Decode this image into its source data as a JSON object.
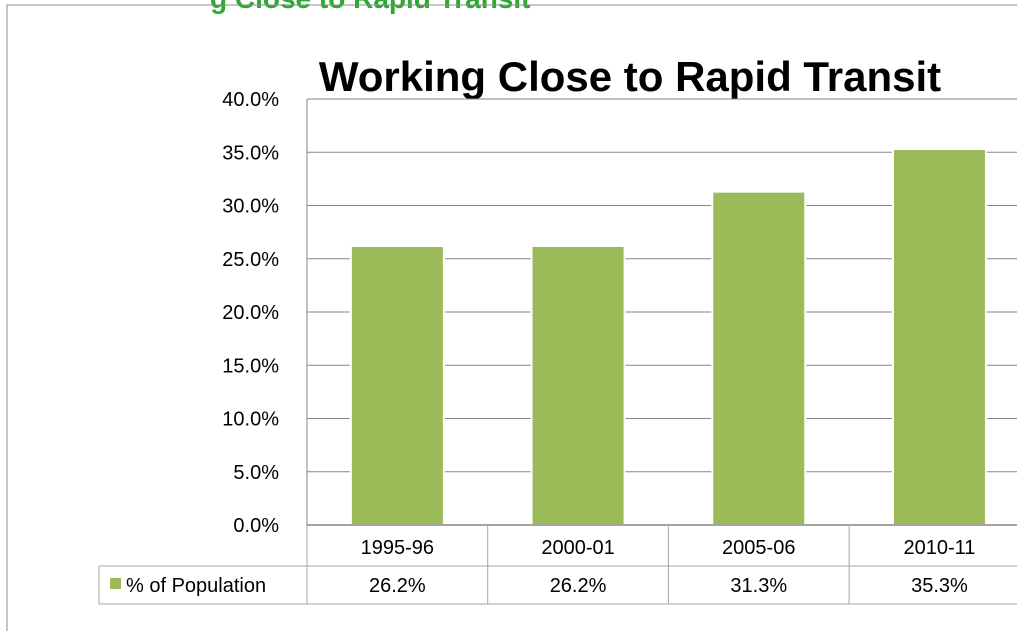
{
  "header_fragment": "g   Close to Rapid Transit",
  "chart_data": {
    "type": "bar",
    "title": "Working Close to Rapid Transit",
    "categories": [
      "1995-96",
      "2000-01",
      "2005-06",
      "2010-11"
    ],
    "series": [
      {
        "name": "% of Population",
        "values": [
          26.2,
          26.2,
          31.3,
          35.3
        ],
        "labels": [
          "26.2%",
          "26.2%",
          "31.3%",
          "35.3%"
        ]
      }
    ],
    "ylim": [
      0,
      40
    ],
    "yticks": [
      "0.0%",
      "5.0%",
      "10.0%",
      "15.0%",
      "20.0%",
      "25.0%",
      "30.0%",
      "35.0%",
      "40.0%"
    ],
    "grid": true,
    "legend": "data-table",
    "xlabel": "",
    "ylabel": "",
    "colors": {
      "bar": "#9bbb59",
      "grid": "#868686",
      "border": "#a6a6a6",
      "header": "#2fa832"
    }
  }
}
